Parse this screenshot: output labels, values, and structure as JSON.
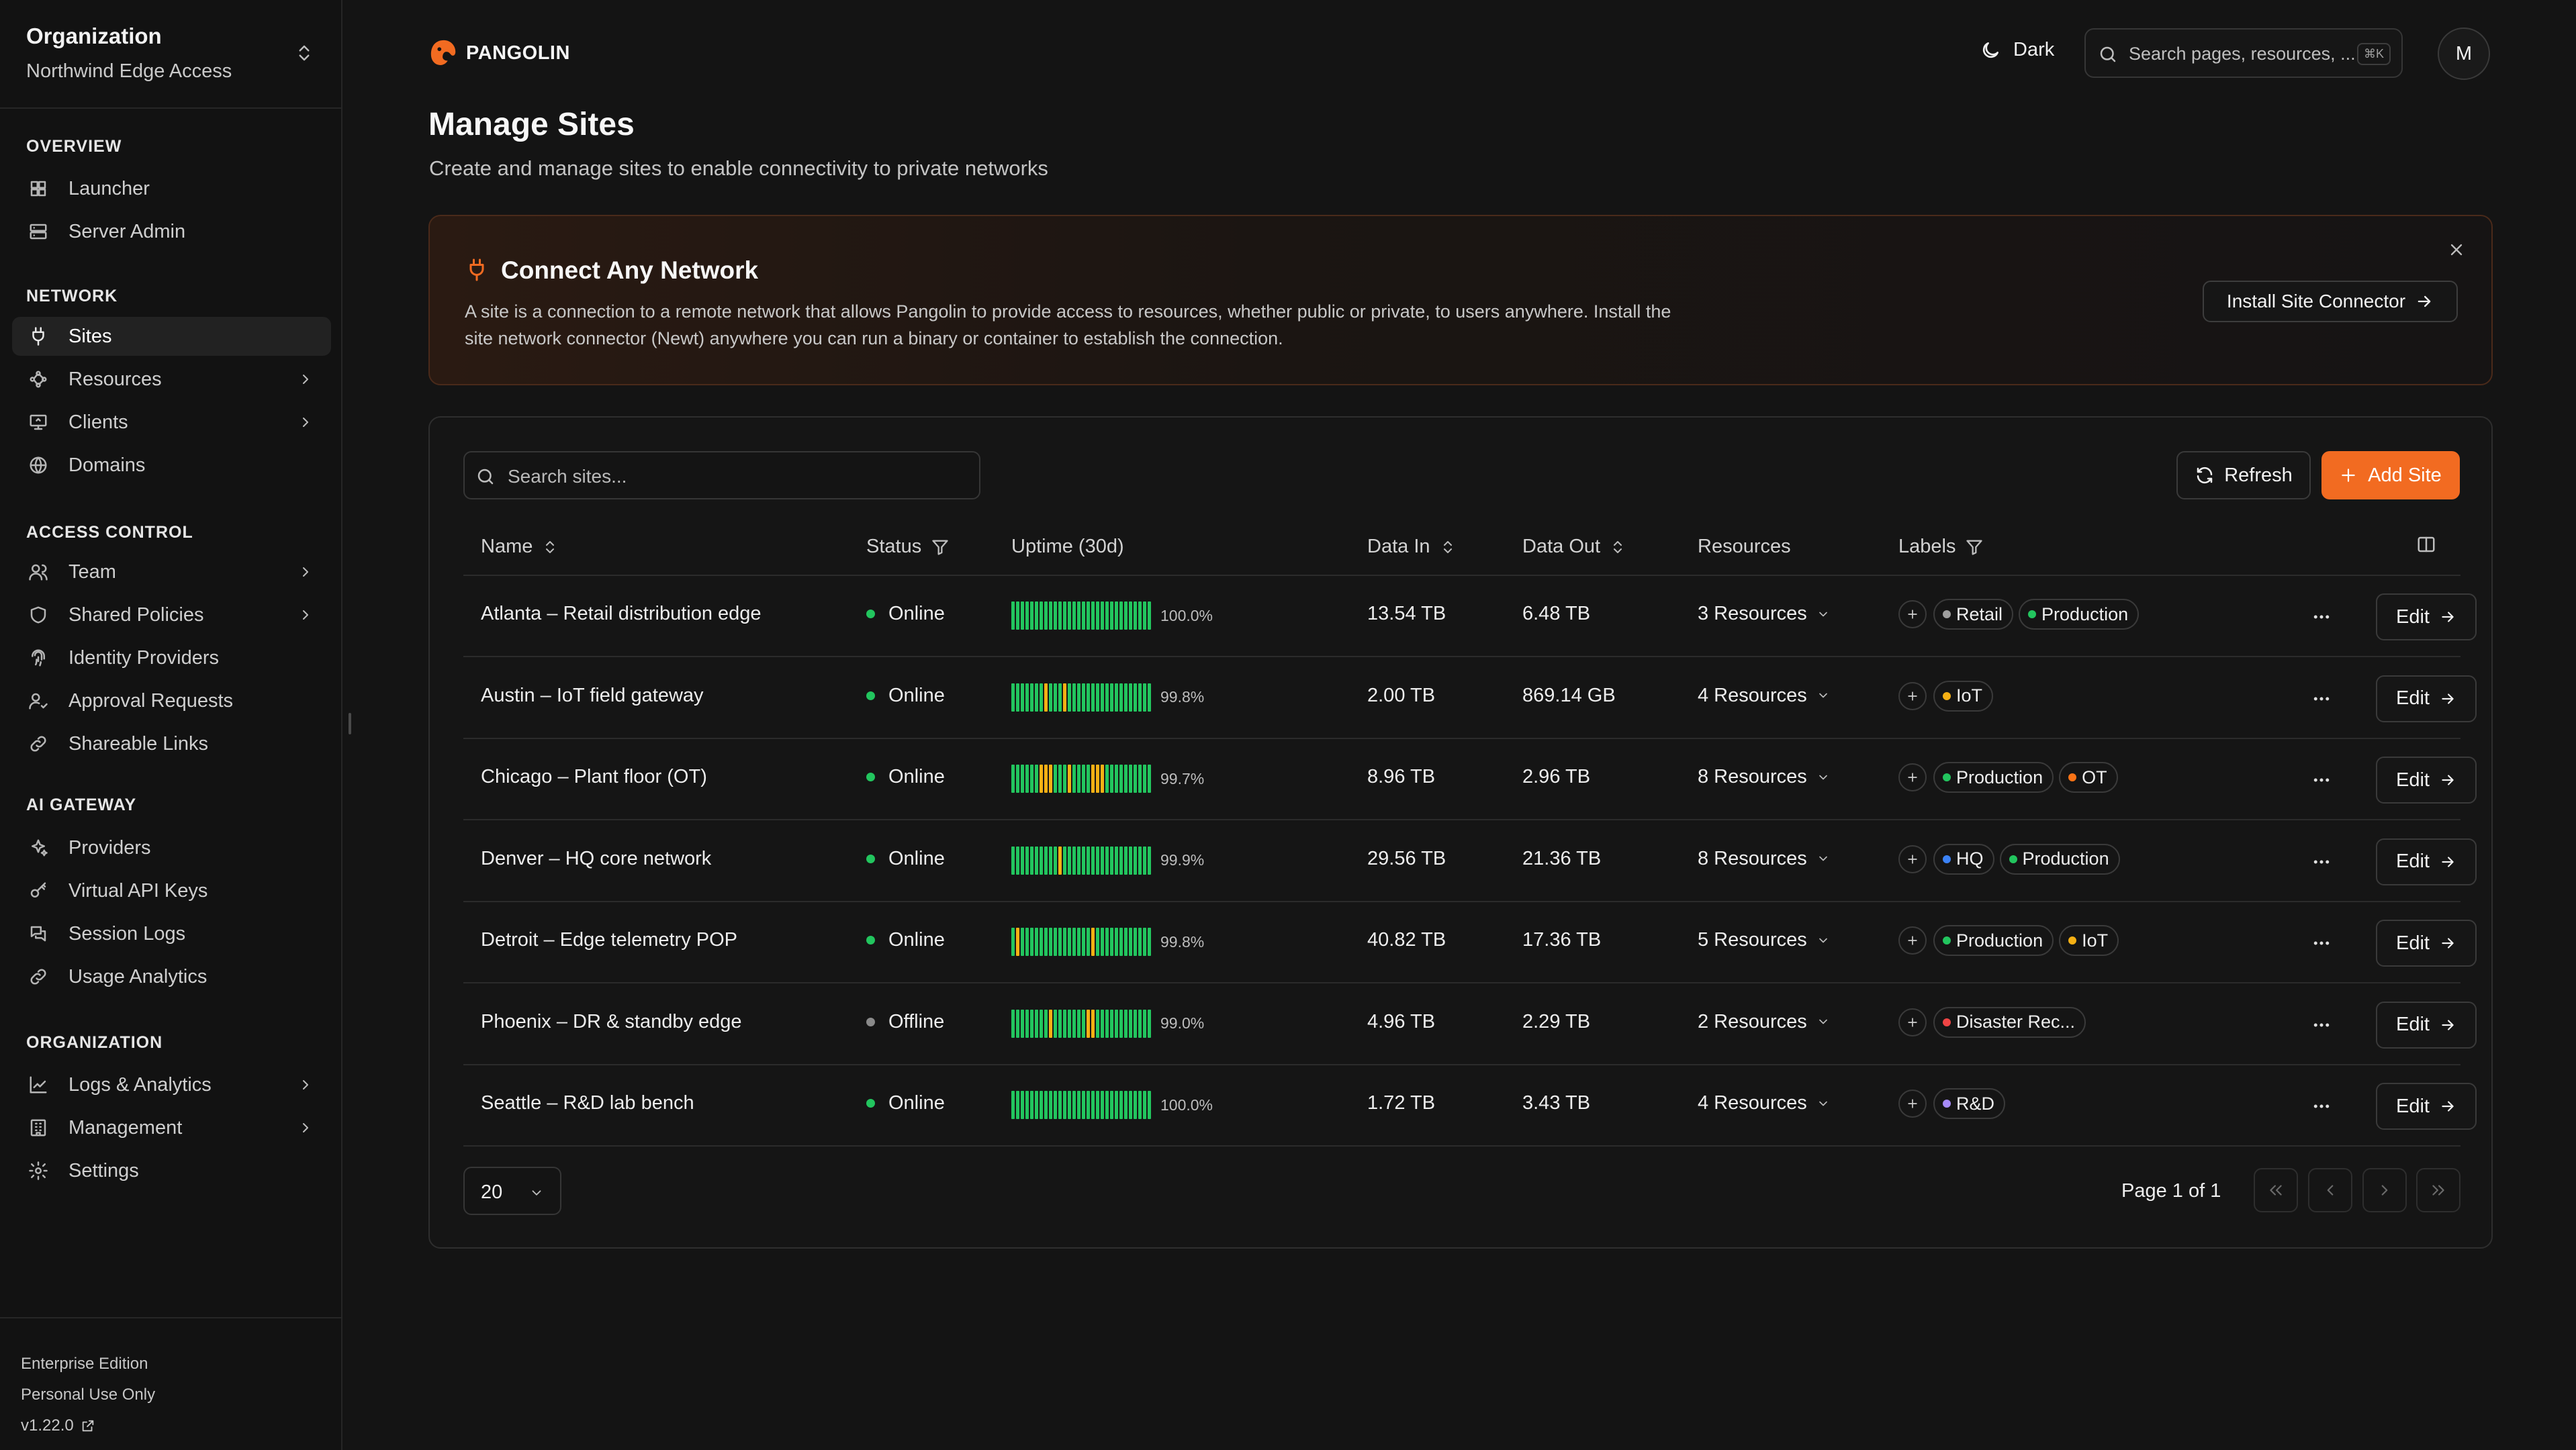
{
  "org": {
    "title": "Organization",
    "name": "Northwind Edge Access"
  },
  "sidebar": {
    "sections": [
      {
        "label": "OVERVIEW",
        "items": [
          {
            "label": "Launcher",
            "icon": "grid-icon"
          },
          {
            "label": "Server Admin",
            "icon": "server-icon"
          }
        ]
      },
      {
        "label": "NETWORK",
        "items": [
          {
            "label": "Sites",
            "icon": "plug-icon",
            "active": true
          },
          {
            "label": "Resources",
            "icon": "waypoints-icon",
            "expandable": true
          },
          {
            "label": "Clients",
            "icon": "monitor-icon",
            "expandable": true
          },
          {
            "label": "Domains",
            "icon": "globe-icon"
          }
        ]
      },
      {
        "label": "ACCESS CONTROL",
        "items": [
          {
            "label": "Team",
            "icon": "users-icon",
            "expandable": true
          },
          {
            "label": "Shared Policies",
            "icon": "shield-icon",
            "expandable": true
          },
          {
            "label": "Identity Providers",
            "icon": "fingerprint-icon"
          },
          {
            "label": "Approval Requests",
            "icon": "user-check-icon"
          },
          {
            "label": "Shareable Links",
            "icon": "link-icon"
          }
        ]
      },
      {
        "label": "AI GATEWAY",
        "items": [
          {
            "label": "Providers",
            "icon": "sparkles-icon"
          },
          {
            "label": "Virtual API Keys",
            "icon": "key-icon"
          },
          {
            "label": "Session Logs",
            "icon": "messages-icon"
          },
          {
            "label": "Usage Analytics",
            "icon": "chart-link-icon"
          }
        ]
      },
      {
        "label": "ORGANIZATION",
        "items": [
          {
            "label": "Logs & Analytics",
            "icon": "line-chart-icon",
            "expandable": true
          },
          {
            "label": "Management",
            "icon": "building-icon",
            "expandable": true
          },
          {
            "label": "Settings",
            "icon": "gear-icon"
          }
        ]
      }
    ],
    "footer": {
      "edition": "Enterprise Edition",
      "license": "Personal Use Only",
      "version": "v1.22.0"
    }
  },
  "topbar": {
    "brand": "PANGOLIN",
    "theme_label": "Dark",
    "search_placeholder": "Search pages, resources, ...",
    "search_shortcut": "⌘K",
    "avatar_initial": "M"
  },
  "page": {
    "title": "Manage Sites",
    "subtitle": "Create and manage sites to enable connectivity to private networks"
  },
  "banner": {
    "title": "Connect Any Network",
    "description": "A site is a connection to a remote network that allows Pangolin to provide access to resources, whether public or private, to users anywhere. Install the site network connector (Newt) anywhere you can run a binary or container to establish the connection.",
    "button": "Install Site Connector"
  },
  "table": {
    "search_placeholder": "Search sites...",
    "refresh_label": "Refresh",
    "add_label": "Add Site",
    "columns": {
      "name": "Name",
      "status": "Status",
      "uptime": "Uptime (30d)",
      "data_in": "Data In",
      "data_out": "Data Out",
      "resources": "Resources",
      "labels": "Labels"
    },
    "edit_label": "Edit",
    "rows": [
      {
        "name": "Atlanta – Retail distribution edge",
        "status": "Online",
        "uptime": "100.0%",
        "data_in": "13.54 TB",
        "data_out": "6.48 TB",
        "resources": "3 Resources",
        "labels": [
          {
            "text": "Retail",
            "color": "#9e9e9e"
          },
          {
            "text": "Production",
            "color": "#22c55e"
          }
        ],
        "bars_warn": []
      },
      {
        "name": "Austin – IoT field gateway",
        "status": "Online",
        "uptime": "99.8%",
        "data_in": "2.00 TB",
        "data_out": "869.14 GB",
        "resources": "4 Resources",
        "labels": [
          {
            "text": "IoT",
            "color": "#f5b014"
          }
        ],
        "bars_warn": [
          7,
          11
        ]
      },
      {
        "name": "Chicago – Plant floor (OT)",
        "status": "Online",
        "uptime": "99.7%",
        "data_in": "8.96 TB",
        "data_out": "2.96 TB",
        "resources": "8 Resources",
        "labels": [
          {
            "text": "Production",
            "color": "#22c55e"
          },
          {
            "text": "OT",
            "color": "#f97316"
          }
        ],
        "bars_warn": [
          6,
          7,
          8,
          12,
          17,
          18,
          19
        ]
      },
      {
        "name": "Denver – HQ core network",
        "status": "Online",
        "uptime": "99.9%",
        "data_in": "29.56 TB",
        "data_out": "21.36 TB",
        "resources": "8 Resources",
        "labels": [
          {
            "text": "HQ",
            "color": "#3b82f6"
          },
          {
            "text": "Production",
            "color": "#22c55e"
          }
        ],
        "bars_warn": [
          10
        ]
      },
      {
        "name": "Detroit – Edge telemetry POP",
        "status": "Online",
        "uptime": "99.8%",
        "data_in": "40.82 TB",
        "data_out": "17.36 TB",
        "resources": "5 Resources",
        "labels": [
          {
            "text": "Production",
            "color": "#22c55e"
          },
          {
            "text": "IoT",
            "color": "#f5b014"
          }
        ],
        "bars_warn": [
          1,
          17
        ]
      },
      {
        "name": "Phoenix – DR & standby edge",
        "status": "Offline",
        "uptime": "99.0%",
        "data_in": "4.96 TB",
        "data_out": "2.29 TB",
        "resources": "2 Resources",
        "labels": [
          {
            "text": "Disaster Rec...",
            "color": "#ef4444"
          }
        ],
        "bars_warn": [
          8,
          16,
          17
        ]
      },
      {
        "name": "Seattle – R&D lab bench",
        "status": "Online",
        "uptime": "100.0%",
        "data_in": "1.72 TB",
        "data_out": "3.43 TB",
        "resources": "4 Resources",
        "labels": [
          {
            "text": "R&D",
            "color": "#a78bfa"
          }
        ],
        "bars_warn": []
      }
    ],
    "page_size": "20",
    "page_info": "Page 1 of 1"
  },
  "colors": {
    "accent": "#f26b21",
    "online": "#22c55e",
    "offline": "#8a8a8a",
    "uptime_ok": "#22c55e",
    "uptime_warn": "#f5b014"
  }
}
